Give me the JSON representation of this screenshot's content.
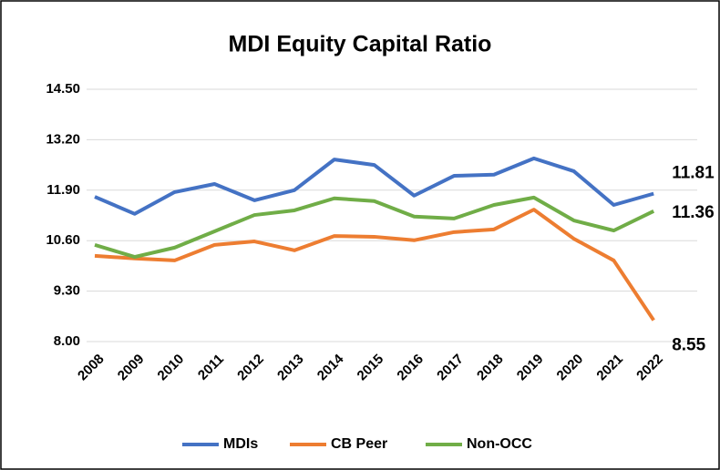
{
  "chart_data": {
    "type": "line",
    "title": "MDI Equity Capital Ratio",
    "categories": [
      "2008",
      "2009",
      "2010",
      "2011",
      "2012",
      "2013",
      "2014",
      "2015",
      "2016",
      "2017",
      "2018",
      "2019",
      "2020",
      "2021",
      "2022"
    ],
    "series": [
      {
        "name": "MDIs",
        "color": "#4472c4",
        "label_color": "#2f5597",
        "values": [
          11.73,
          11.29,
          11.85,
          12.06,
          11.64,
          11.9,
          12.69,
          12.55,
          11.76,
          12.27,
          12.3,
          12.72,
          12.39,
          11.52,
          11.81
        ]
      },
      {
        "name": "CB Peer",
        "color": "#ed7d31",
        "label_color": "#c55a11",
        "values": [
          10.21,
          10.14,
          10.09,
          10.49,
          10.58,
          10.35,
          10.72,
          10.7,
          10.61,
          10.82,
          10.89,
          11.4,
          10.65,
          10.09,
          8.55
        ]
      },
      {
        "name": "Non-OCC",
        "color": "#70ad47",
        "label_color": "#548235",
        "values": [
          10.49,
          10.18,
          10.42,
          10.84,
          11.26,
          11.38,
          11.69,
          11.62,
          11.22,
          11.17,
          11.52,
          11.71,
          11.12,
          10.86,
          11.36
        ]
      }
    ],
    "ylim": [
      8.0,
      14.5
    ],
    "yticks": [
      {
        "value": 8.0,
        "label": "8.00"
      },
      {
        "value": 9.3,
        "label": "9.30"
      },
      {
        "value": 10.6,
        "label": "10.60"
      },
      {
        "value": 11.9,
        "label": "11.90"
      },
      {
        "value": 13.2,
        "label": "13.20"
      },
      {
        "value": 14.5,
        "label": "14.50"
      }
    ],
    "grid": true,
    "legend": "bottom"
  }
}
